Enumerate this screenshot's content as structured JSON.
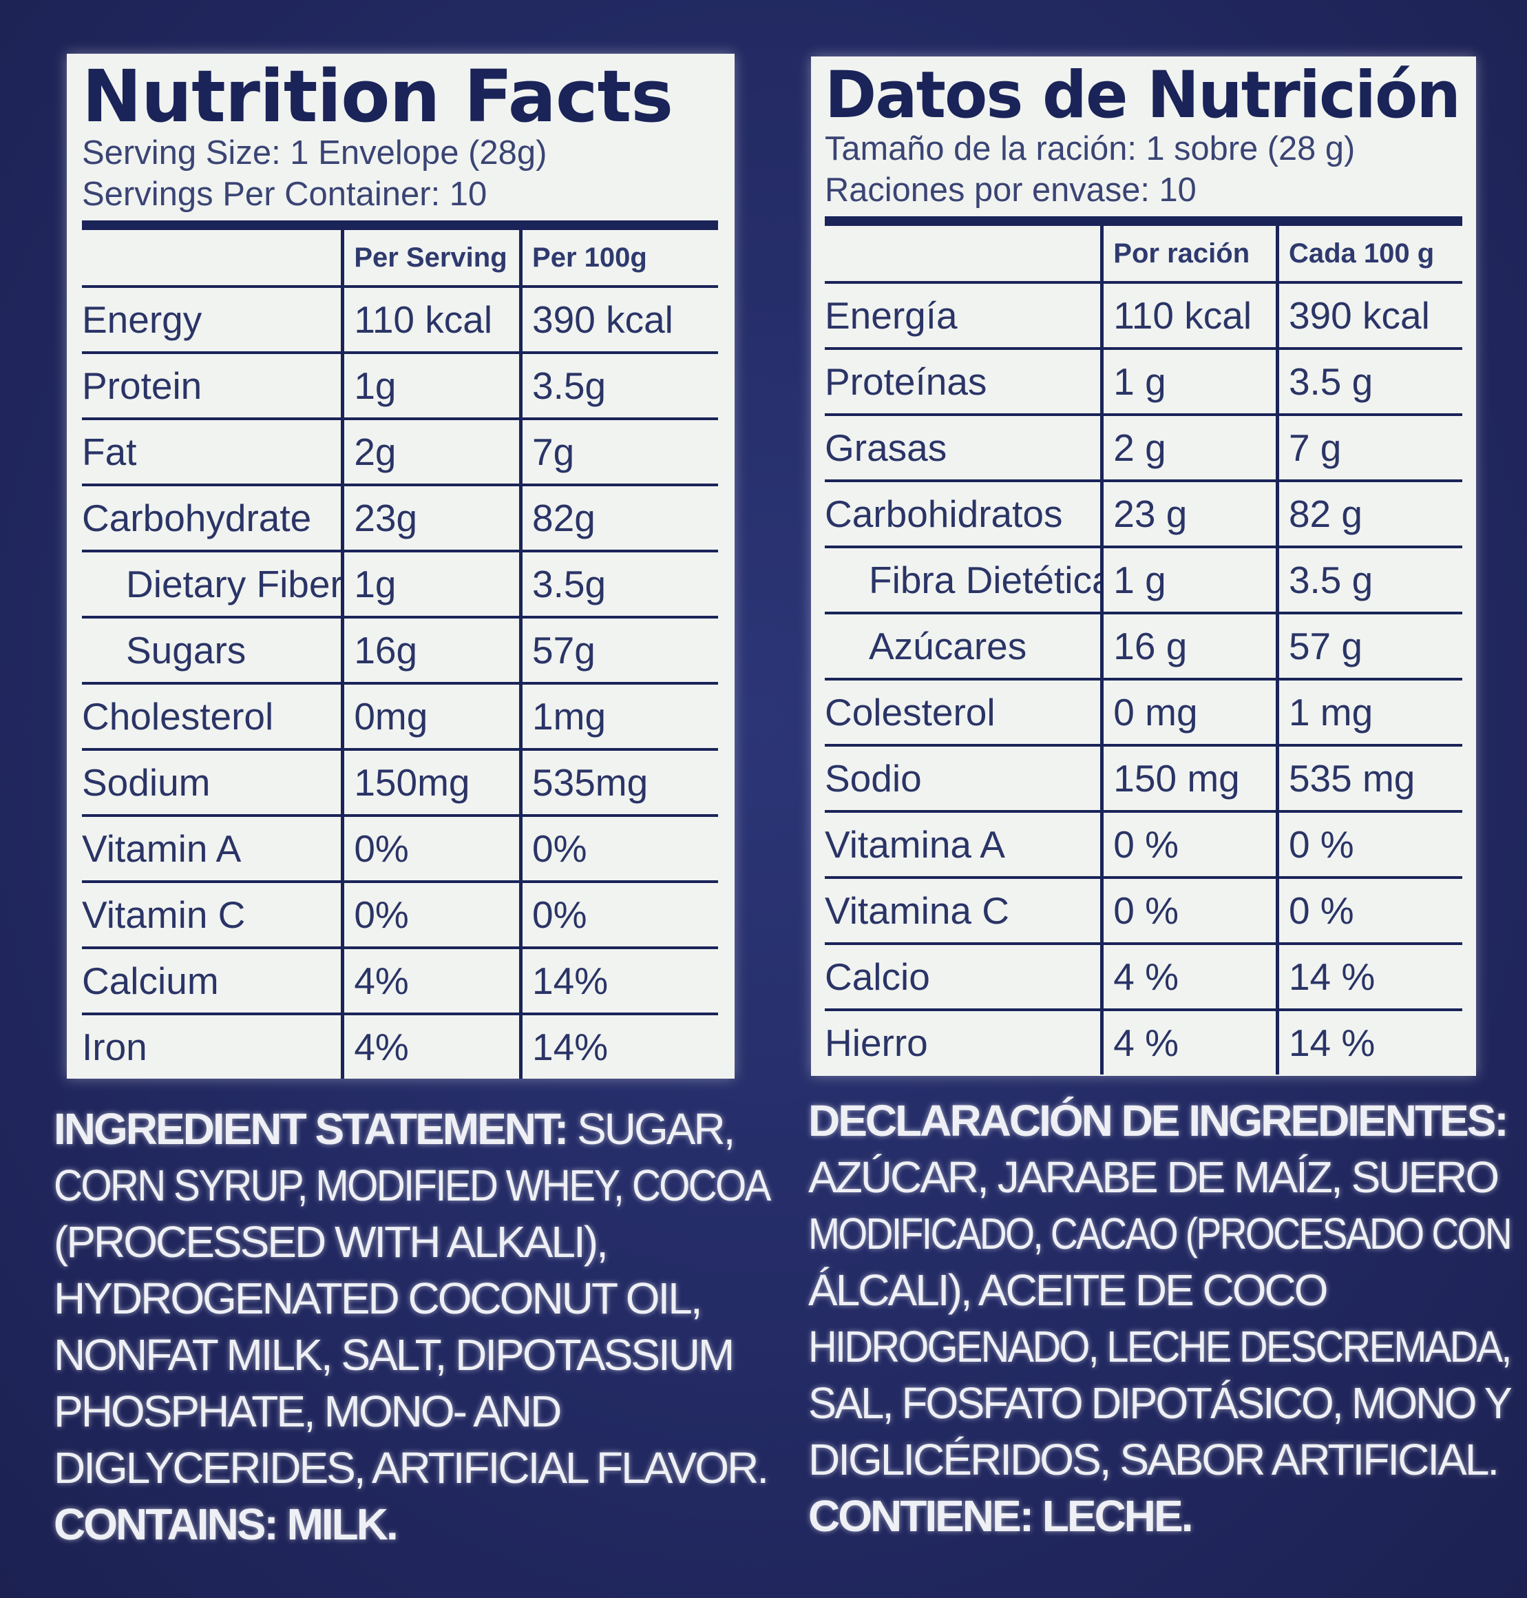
{
  "english": {
    "title": "Nutrition Facts",
    "serving_size": "Serving Size: 1 Envelope (28g)",
    "servings_per_container": "Servings Per Container: 10",
    "headers": [
      "",
      "Per Serving",
      "Per 100g"
    ],
    "rows": [
      {
        "label": "Energy",
        "per_serving": "110 kcal",
        "per_100": "390 kcal"
      },
      {
        "label": "Protein",
        "per_serving": "1g",
        "per_100": "3.5g"
      },
      {
        "label": "Fat",
        "per_serving": "2g",
        "per_100": "7g"
      },
      {
        "label": "Carbohydrate",
        "per_serving": "23g",
        "per_100": "82g"
      },
      {
        "label": "Dietary Fiber",
        "per_serving": "1g",
        "per_100": "3.5g"
      },
      {
        "label": "Sugars",
        "per_serving": "16g",
        "per_100": "57g"
      },
      {
        "label": "Cholesterol",
        "per_serving": "0mg",
        "per_100": "1mg"
      },
      {
        "label": "Sodium",
        "per_serving": "150mg",
        "per_100": "535mg"
      },
      {
        "label": "Vitamin A",
        "per_serving": "0%",
        "per_100": "0%"
      },
      {
        "label": "Vitamin C",
        "per_serving": "0%",
        "per_100": "0%"
      },
      {
        "label": "Calcium",
        "per_serving": "4%",
        "per_100": "14%"
      },
      {
        "label": "Iron",
        "per_serving": "4%",
        "per_100": "14%"
      }
    ],
    "ingredients_heading": "INGREDIENT STATEMENT:",
    "ingredients_lines": [
      " SUGAR,",
      "CORN SYRUP, MODIFIED WHEY, COCOA",
      "(PROCESSED WITH ALKALI),",
      "HYDROGENATED COCONUT OIL,",
      "NONFAT MILK, SALT, DIPOTASSIUM",
      "PHOSPHATE, MONO- AND",
      "DIGLYCERIDES, ARTIFICIAL FLAVOR."
    ],
    "contains": "CONTAINS: MILK."
  },
  "spanish": {
    "title": "Datos de Nutrición",
    "serving_size": "Tamaño de la ración: 1 sobre (28 g)",
    "servings_per_container": "Raciones por envase: 10",
    "headers": [
      "",
      "Por ración",
      "Cada 100 g"
    ],
    "rows": [
      {
        "label": "Energía",
        "per_serving": "110 kcal",
        "per_100": "390 kcal"
      },
      {
        "label": "Proteínas",
        "per_serving": "1 g",
        "per_100": "3.5 g"
      },
      {
        "label": "Grasas",
        "per_serving": "2 g",
        "per_100": "7 g"
      },
      {
        "label": "Carbohidratos",
        "per_serving": "23 g",
        "per_100": "82 g"
      },
      {
        "label": "Fibra Dietética",
        "per_serving": "1 g",
        "per_100": "3.5 g"
      },
      {
        "label": "Azúcares",
        "per_serving": "16 g",
        "per_100": "57 g"
      },
      {
        "label": "Colesterol",
        "per_serving": "0 mg",
        "per_100": "1 mg"
      },
      {
        "label": "Sodio",
        "per_serving": "150 mg",
        "per_100": "535 mg"
      },
      {
        "label": "Vitamina A",
        "per_serving": "0 %",
        "per_100": "0 %"
      },
      {
        "label": "Vitamina C",
        "per_serving": "0 %",
        "per_100": "0 %"
      },
      {
        "label": "Calcio",
        "per_serving": "4 %",
        "per_100": "14 %"
      },
      {
        "label": "Hierro",
        "per_serving": "4 %",
        "per_100": "14 %"
      }
    ],
    "ingredients_heading": "DECLARACIÓN DE INGREDIENTES:",
    "ingredients_lines": [
      "AZÚCAR, JARABE DE MAÍZ, SUERO",
      "MODIFICADO, CACAO (PROCESADO CON",
      "ÁLCALI), ACEITE DE COCO",
      "HIDROGENADO, LECHE DESCREMADA,",
      "SAL, FOSFATO DIPOTÁSICO, MONO Y",
      "DIGLICÉRIDOS, SABOR ARTIFICIAL."
    ],
    "contains": "CONTIENE: LECHE."
  },
  "colors": {
    "background": "#232a63",
    "panel": "#f1f3f0",
    "ink": "#1a2459",
    "ingredients_text": "#eef0f5"
  }
}
